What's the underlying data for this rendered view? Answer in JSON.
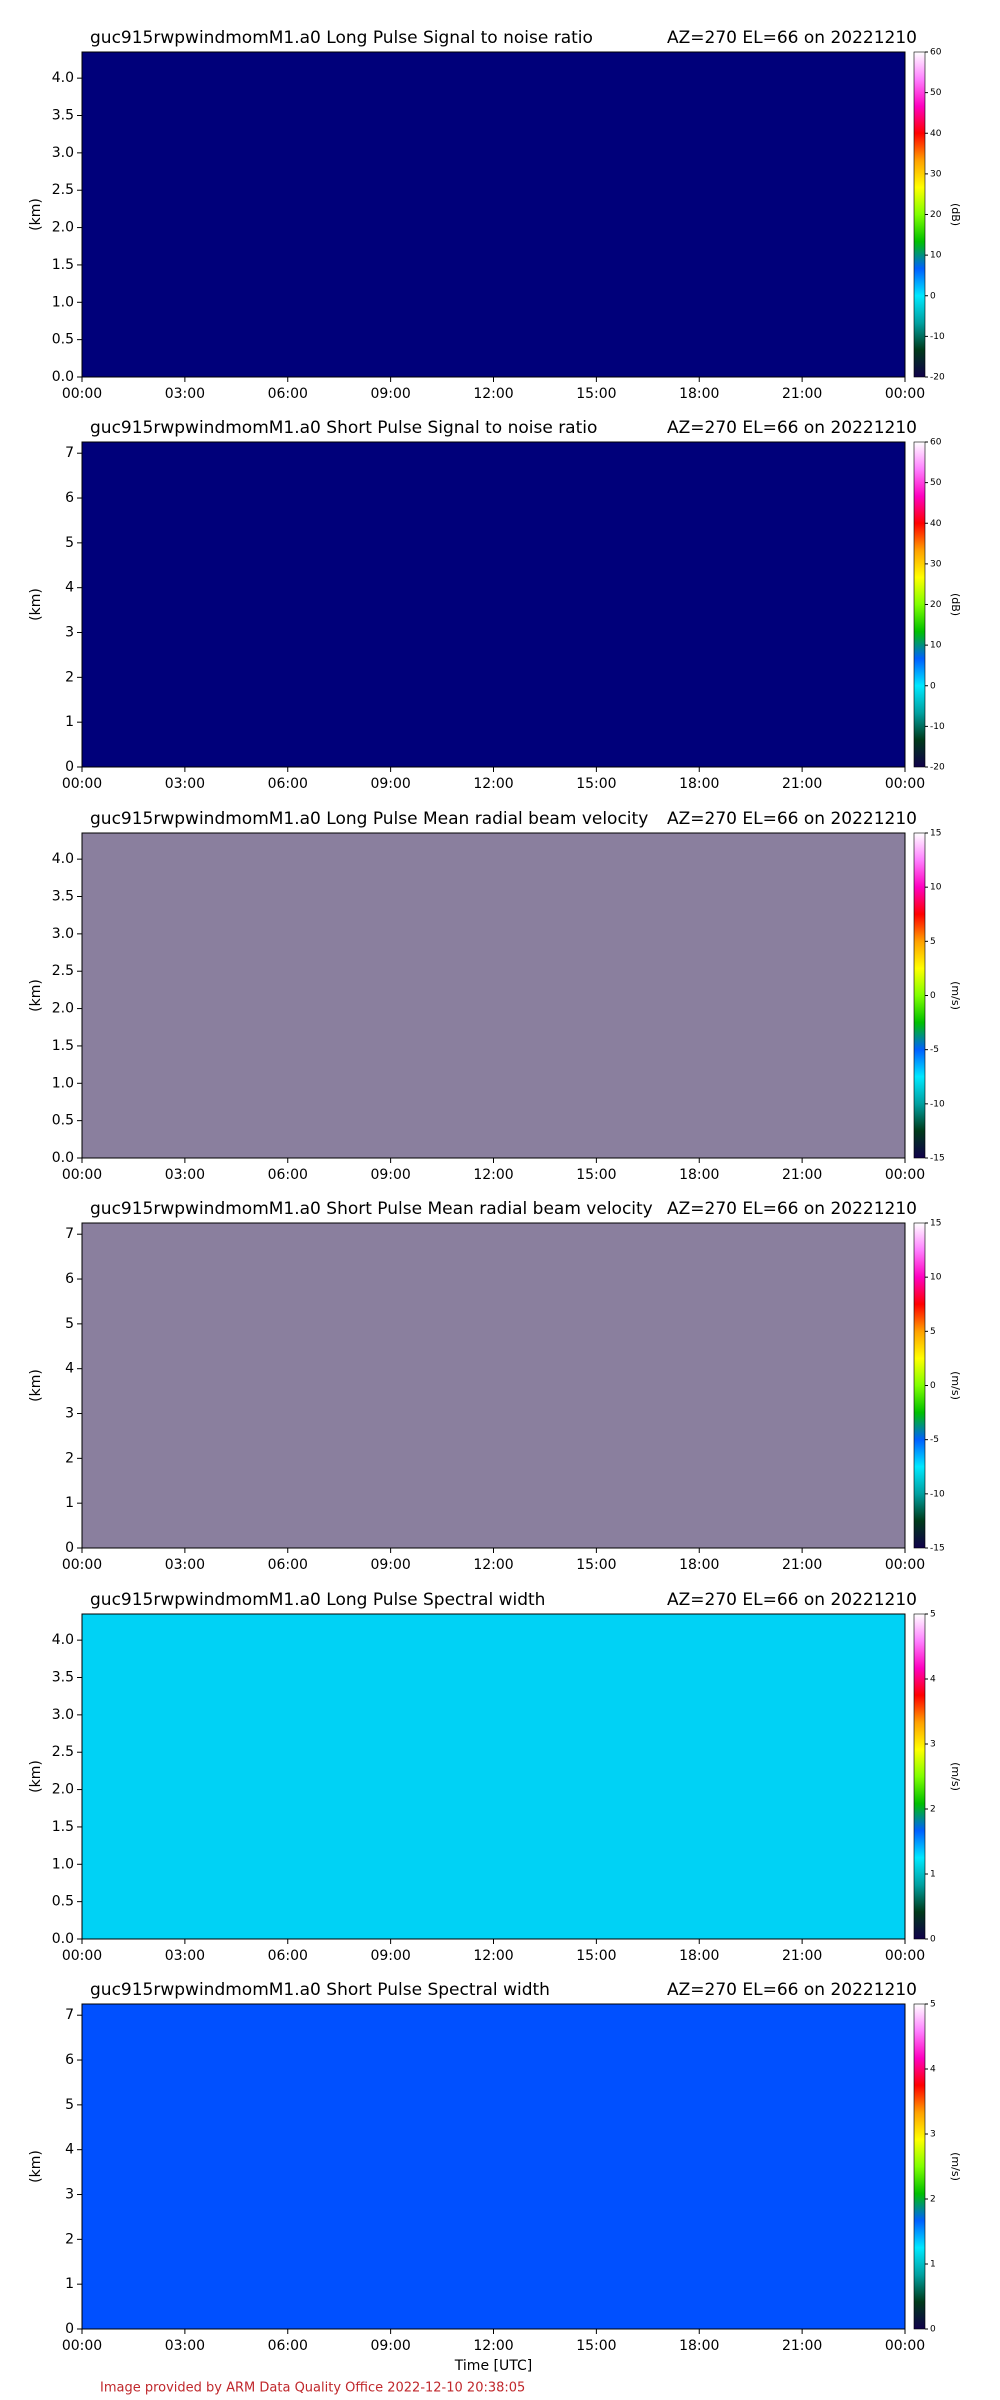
{
  "footer": "Image provided by ARM Data Quality Office 2022-12-10 20:38:05",
  "chart_data": [
    {
      "type": "heatmap",
      "title": "guc915rwpwindmomM1.a0 Long Pulse Signal to noise ratio",
      "subtitle": "AZ=270 EL=66 on 20221210",
      "y_label": "(km)",
      "colorbar_label": "(dB)",
      "background": "#00007a",
      "xlim": [
        0,
        24
      ],
      "xticks": [
        {
          "value": 0,
          "label": "00:00"
        },
        {
          "value": 3,
          "label": "03:00"
        },
        {
          "value": 6,
          "label": "06:00"
        },
        {
          "value": 9,
          "label": "09:00"
        },
        {
          "value": 12,
          "label": "12:00"
        },
        {
          "value": 15,
          "label": "15:00"
        },
        {
          "value": 18,
          "label": "18:00"
        },
        {
          "value": 21,
          "label": "21:00"
        },
        {
          "value": 24,
          "label": "00:00"
        }
      ],
      "ylim": [
        0,
        4.35
      ],
      "yticks": [
        {
          "value": 0,
          "label": "0.0"
        },
        {
          "value": 0.5,
          "label": "0.5"
        },
        {
          "value": 1,
          "label": "1.0"
        },
        {
          "value": 1.5,
          "label": "1.5"
        },
        {
          "value": 2,
          "label": "2.0"
        },
        {
          "value": 2.5,
          "label": "2.5"
        },
        {
          "value": 3,
          "label": "3.0"
        },
        {
          "value": 3.5,
          "label": "3.5"
        },
        {
          "value": 4,
          "label": "4.0"
        }
      ],
      "clim": [
        -20,
        60
      ],
      "cticks": [
        -20,
        -10,
        0,
        10,
        20,
        30,
        40,
        50,
        60
      ],
      "colormap": [
        "#10004a",
        "#003a1a",
        "#00a0a0",
        "#00e8ff",
        "#0060ff",
        "#00c000",
        "#80ff00",
        "#ffff00",
        "#ffa000",
        "#ff0000",
        "#ff00c0",
        "#ff80ff",
        "#ffffff"
      ]
    },
    {
      "type": "heatmap",
      "title": "guc915rwpwindmomM1.a0 Short Pulse Signal to noise ratio",
      "subtitle": "AZ=270 EL=66 on 20221210",
      "y_label": "(km)",
      "colorbar_label": "(dB)",
      "background": "#00007a",
      "xlim": [
        0,
        24
      ],
      "xticks": [
        {
          "value": 0,
          "label": "00:00"
        },
        {
          "value": 3,
          "label": "03:00"
        },
        {
          "value": 6,
          "label": "06:00"
        },
        {
          "value": 9,
          "label": "09:00"
        },
        {
          "value": 12,
          "label": "12:00"
        },
        {
          "value": 15,
          "label": "15:00"
        },
        {
          "value": 18,
          "label": "18:00"
        },
        {
          "value": 21,
          "label": "21:00"
        },
        {
          "value": 24,
          "label": "00:00"
        }
      ],
      "ylim": [
        0,
        7.25
      ],
      "yticks": [
        0,
        1,
        2,
        3,
        4,
        5,
        6,
        7
      ],
      "clim": [
        -20,
        60
      ],
      "cticks": [
        -20,
        -10,
        0,
        10,
        20,
        30,
        40,
        50,
        60
      ],
      "colormap": [
        "#10004a",
        "#003a1a",
        "#00a0a0",
        "#00e8ff",
        "#0060ff",
        "#00c000",
        "#80ff00",
        "#ffff00",
        "#ffa000",
        "#ff0000",
        "#ff00c0",
        "#ff80ff",
        "#ffffff"
      ]
    },
    {
      "type": "heatmap",
      "title": "guc915rwpwindmomM1.a0 Long Pulse Mean radial beam velocity",
      "subtitle": "AZ=270 EL=66 on 20221210",
      "y_label": "(km)",
      "colorbar_label": "(m/s)",
      "background": "#8a7f9e",
      "xlim": [
        0,
        24
      ],
      "xticks": [
        {
          "value": 0,
          "label": "00:00"
        },
        {
          "value": 3,
          "label": "03:00"
        },
        {
          "value": 6,
          "label": "06:00"
        },
        {
          "value": 9,
          "label": "09:00"
        },
        {
          "value": 12,
          "label": "12:00"
        },
        {
          "value": 15,
          "label": "15:00"
        },
        {
          "value": 18,
          "label": "18:00"
        },
        {
          "value": 21,
          "label": "21:00"
        },
        {
          "value": 24,
          "label": "00:00"
        }
      ],
      "ylim": [
        0,
        4.35
      ],
      "yticks": [
        {
          "value": 0,
          "label": "0.0"
        },
        {
          "value": 0.5,
          "label": "0.5"
        },
        {
          "value": 1,
          "label": "1.0"
        },
        {
          "value": 1.5,
          "label": "1.5"
        },
        {
          "value": 2,
          "label": "2.0"
        },
        {
          "value": 2.5,
          "label": "2.5"
        },
        {
          "value": 3,
          "label": "3.0"
        },
        {
          "value": 3.5,
          "label": "3.5"
        },
        {
          "value": 4,
          "label": "4.0"
        }
      ],
      "clim": [
        -15,
        15
      ],
      "cticks": [
        -15,
        -10,
        -5,
        0,
        5,
        10,
        15
      ],
      "colormap": [
        "#10004a",
        "#003a1a",
        "#00a0a0",
        "#00e8ff",
        "#0060ff",
        "#00c000",
        "#80ff00",
        "#ffff00",
        "#ffa000",
        "#ff0000",
        "#ff00c0",
        "#ff80ff",
        "#ffffff"
      ]
    },
    {
      "type": "heatmap",
      "title": "guc915rwpwindmomM1.a0 Short Pulse Mean radial beam velocity",
      "subtitle": "AZ=270 EL=66 on 20221210",
      "y_label": "(km)",
      "colorbar_label": "(m/s)",
      "background": "#8a7f9e",
      "xlim": [
        0,
        24
      ],
      "xticks": [
        {
          "value": 0,
          "label": "00:00"
        },
        {
          "value": 3,
          "label": "03:00"
        },
        {
          "value": 6,
          "label": "06:00"
        },
        {
          "value": 9,
          "label": "09:00"
        },
        {
          "value": 12,
          "label": "12:00"
        },
        {
          "value": 15,
          "label": "15:00"
        },
        {
          "value": 18,
          "label": "18:00"
        },
        {
          "value": 21,
          "label": "21:00"
        },
        {
          "value": 24,
          "label": "00:00"
        }
      ],
      "ylim": [
        0,
        7.25
      ],
      "yticks": [
        0,
        1,
        2,
        3,
        4,
        5,
        6,
        7
      ],
      "clim": [
        -15,
        15
      ],
      "cticks": [
        -15,
        -10,
        -5,
        0,
        5,
        10,
        15
      ],
      "colormap": [
        "#10004a",
        "#003a1a",
        "#00a0a0",
        "#00e8ff",
        "#0060ff",
        "#00c000",
        "#80ff00",
        "#ffff00",
        "#ffa000",
        "#ff0000",
        "#ff00c0",
        "#ff80ff",
        "#ffffff"
      ]
    },
    {
      "type": "heatmap",
      "title": "guc915rwpwindmomM1.a0 Long Pulse Spectral width",
      "subtitle": "AZ=270 EL=66 on 20221210",
      "y_label": "(km)",
      "colorbar_label": "(m/s)",
      "background": "#00d2f5",
      "xlim": [
        0,
        24
      ],
      "xticks": [
        {
          "value": 0,
          "label": "00:00"
        },
        {
          "value": 3,
          "label": "03:00"
        },
        {
          "value": 6,
          "label": "06:00"
        },
        {
          "value": 9,
          "label": "09:00"
        },
        {
          "value": 12,
          "label": "12:00"
        },
        {
          "value": 15,
          "label": "15:00"
        },
        {
          "value": 18,
          "label": "18:00"
        },
        {
          "value": 21,
          "label": "21:00"
        },
        {
          "value": 24,
          "label": "00:00"
        }
      ],
      "ylim": [
        0,
        4.35
      ],
      "yticks": [
        {
          "value": 0,
          "label": "0.0"
        },
        {
          "value": 0.5,
          "label": "0.5"
        },
        {
          "value": 1,
          "label": "1.0"
        },
        {
          "value": 1.5,
          "label": "1.5"
        },
        {
          "value": 2,
          "label": "2.0"
        },
        {
          "value": 2.5,
          "label": "2.5"
        },
        {
          "value": 3,
          "label": "3.0"
        },
        {
          "value": 3.5,
          "label": "3.5"
        },
        {
          "value": 4,
          "label": "4.0"
        }
      ],
      "clim": [
        0,
        5
      ],
      "cticks": [
        0,
        1,
        2,
        3,
        4,
        5
      ],
      "colormap": [
        "#10004a",
        "#003a1a",
        "#00a0a0",
        "#00e8ff",
        "#0060ff",
        "#00c000",
        "#80ff00",
        "#ffff00",
        "#ffa000",
        "#ff0000",
        "#ff00c0",
        "#ff80ff",
        "#ffffff"
      ]
    },
    {
      "type": "heatmap",
      "title": "guc915rwpwindmomM1.a0 Short Pulse Spectral width",
      "subtitle": "AZ=270 EL=66 on 20221210",
      "y_label": "(km)",
      "x_label": "Time [UTC]",
      "colorbar_label": "(m/s)",
      "background": "#0050ff",
      "xlim": [
        0,
        24
      ],
      "xticks": [
        {
          "value": 0,
          "label": "00:00"
        },
        {
          "value": 3,
          "label": "03:00"
        },
        {
          "value": 6,
          "label": "06:00"
        },
        {
          "value": 9,
          "label": "09:00"
        },
        {
          "value": 12,
          "label": "12:00"
        },
        {
          "value": 15,
          "label": "15:00"
        },
        {
          "value": 18,
          "label": "18:00"
        },
        {
          "value": 21,
          "label": "21:00"
        },
        {
          "value": 24,
          "label": "00:00"
        }
      ],
      "ylim": [
        0,
        7.25
      ],
      "yticks": [
        0,
        1,
        2,
        3,
        4,
        5,
        6,
        7
      ],
      "clim": [
        0,
        5
      ],
      "cticks": [
        0,
        1,
        2,
        3,
        4,
        5
      ],
      "colormap": [
        "#10004a",
        "#003a1a",
        "#00a0a0",
        "#00e8ff",
        "#0060ff",
        "#00c000",
        "#80ff00",
        "#ffff00",
        "#ffa000",
        "#ff0000",
        "#ff00c0",
        "#ff80ff",
        "#ffffff"
      ]
    }
  ]
}
